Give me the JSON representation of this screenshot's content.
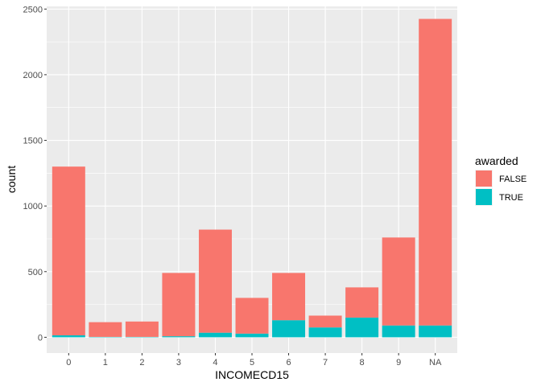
{
  "chart_data": {
    "type": "bar",
    "stacked": true,
    "xlabel": "INCOMECD15",
    "ylabel": "count",
    "categories": [
      "0",
      "1",
      "2",
      "3",
      "4",
      "5",
      "6",
      "7",
      "8",
      "9",
      "NA"
    ],
    "ylim": [
      -120,
      2520
    ],
    "yticks": [
      0,
      500,
      1000,
      1500,
      2000,
      2500
    ],
    "series": [
      {
        "name": "TRUE",
        "color": "#00BFC4",
        "values": [
          15,
          3,
          3,
          8,
          35,
          28,
          130,
          75,
          150,
          90,
          90
        ]
      },
      {
        "name": "FALSE",
        "color": "#F8766D",
        "values": [
          1285,
          112,
          117,
          482,
          785,
          272,
          360,
          90,
          230,
          670,
          2335
        ]
      }
    ],
    "legend": {
      "title": "awarded",
      "position": "right",
      "items": [
        {
          "label": "FALSE",
          "color": "#F8766D"
        },
        {
          "label": "TRUE",
          "color": "#00BFC4"
        }
      ]
    },
    "grid": true,
    "panel_background": "#EBEBEB"
  }
}
